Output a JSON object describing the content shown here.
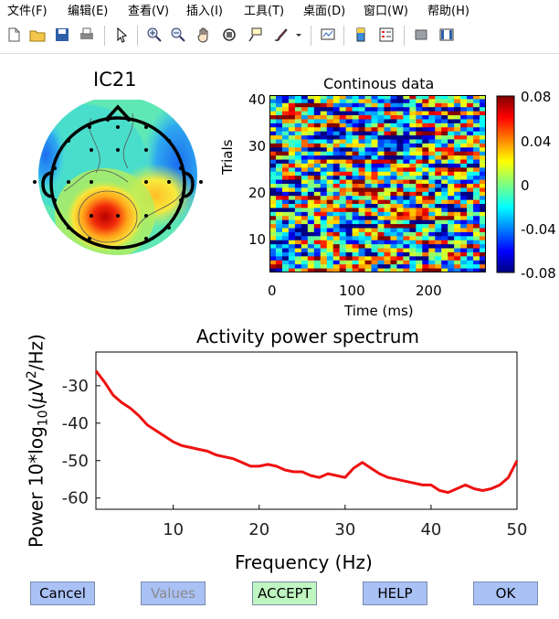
{
  "menu": [
    "文件(F)",
    "编辑(E)",
    "查看(V)",
    "插入(I)",
    "工具(T)",
    "桌面(D)",
    "窗口(W)",
    "帮助(H)"
  ],
  "toolbar": {
    "icons": [
      "new-file-icon",
      "open-folder-icon",
      "save-icon",
      "print-icon",
      "pointer-icon",
      "zoom-in-icon",
      "zoom-out-icon",
      "pan-icon",
      "rotate-3d-icon",
      "data-cursor-icon",
      "brush-icon",
      "link-plot-icon",
      "colorbar-icon",
      "legend-icon",
      "hide-plot-tools-icon",
      "show-plot-tools-icon"
    ]
  },
  "topoplot": {
    "title": "IC21"
  },
  "erpimage": {
    "title": "Continous data",
    "ylabel": "Trials",
    "xlabel": "Time (ms)",
    "yticks": [
      "10",
      "20",
      "30",
      "40"
    ],
    "xticks": [
      "0",
      "100",
      "200"
    ],
    "colorbar_ticks": [
      "0.08",
      "0.04",
      "0",
      "-0.04",
      "-0.08"
    ]
  },
  "chart_data": {
    "type": "line",
    "title": "Activity power spectrum",
    "xlabel": "Frequency (Hz)",
    "ylabel": "Power 10*log10(μV2/Hz)",
    "xlim": [
      1,
      50
    ],
    "ylim": [
      -63,
      -21
    ],
    "xticks": [
      10,
      20,
      30,
      40,
      50
    ],
    "yticks": [
      -30,
      -40,
      -50,
      -60
    ],
    "series": [
      {
        "name": "spectrum",
        "color": "#ee1111",
        "x": [
          1,
          2,
          3,
          4,
          5,
          6,
          7,
          8,
          9,
          10,
          11,
          12,
          13,
          14,
          15,
          16,
          17,
          18,
          19,
          20,
          21,
          22,
          23,
          24,
          25,
          26,
          27,
          28,
          29,
          30,
          31,
          32,
          33,
          34,
          35,
          36,
          37,
          38,
          39,
          40,
          41,
          42,
          43,
          44,
          45,
          46,
          47,
          48,
          49,
          50
        ],
        "values": [
          -26,
          -29,
          -32.5,
          -34.5,
          -36,
          -38,
          -40.5,
          -42,
          -43.5,
          -45,
          -46,
          -46.5,
          -47,
          -47.5,
          -48.5,
          -49,
          -49.5,
          -50.5,
          -51.5,
          -51.5,
          -51,
          -51.5,
          -52.5,
          -53,
          -53,
          -54,
          -54.5,
          -53.5,
          -54,
          -54.5,
          -52,
          -50.5,
          -52,
          -53.5,
          -54.5,
          -55,
          -55.5,
          -56,
          -56.5,
          -56.5,
          -58,
          -58.5,
          -57.5,
          -56.5,
          -57.5,
          -58,
          -57.5,
          -56.5,
          -54.5,
          -50
        ]
      }
    ]
  },
  "buttons": {
    "cancel": "Cancel",
    "values": "Values",
    "accept": "ACCEPT",
    "help": "HELP",
    "ok": "OK"
  },
  "colors": {
    "button": "#a9c1f5",
    "accept": "#bff5c0",
    "disabled_text": "#8a8a8a",
    "line": "#ee1111"
  }
}
